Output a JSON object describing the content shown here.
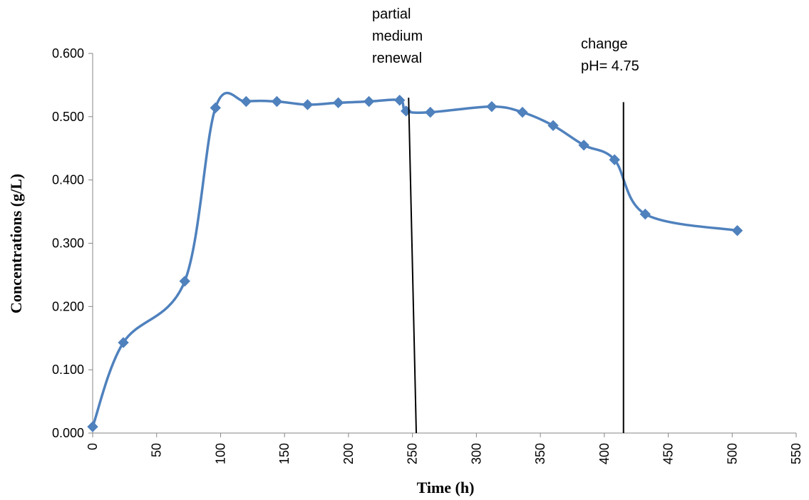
{
  "chart_data": {
    "type": "line",
    "xlabel": "Time (h)",
    "ylabel": "Concentrations (g/L)",
    "xlim": [
      0,
      550
    ],
    "ylim": [
      0,
      0.6
    ],
    "x_ticks": [
      "0",
      "50",
      "100",
      "150",
      "200",
      "250",
      "300",
      "350",
      "400",
      "450",
      "500",
      "550"
    ],
    "y_ticks": [
      "0.000",
      "0.100",
      "0.200",
      "0.300",
      "0.400",
      "0.500",
      "0.600"
    ],
    "grid": false,
    "legend": "none",
    "series": [
      {
        "color": "#4f81bd",
        "marker": "diamond",
        "smooth": true,
        "points": [
          {
            "x": 0,
            "y": 0.01
          },
          {
            "x": 24,
            "y": 0.143
          },
          {
            "x": 72,
            "y": 0.24
          },
          {
            "x": 96,
            "y": 0.514
          },
          {
            "x": 120,
            "y": 0.524
          },
          {
            "x": 144,
            "y": 0.524
          },
          {
            "x": 168,
            "y": 0.519
          },
          {
            "x": 192,
            "y": 0.522
          },
          {
            "x": 216,
            "y": 0.524
          },
          {
            "x": 240,
            "y": 0.526
          },
          {
            "x": 245,
            "y": 0.509
          },
          {
            "x": 264,
            "y": 0.507
          },
          {
            "x": 312,
            "y": 0.516
          },
          {
            "x": 336,
            "y": 0.507
          },
          {
            "x": 360,
            "y": 0.486
          },
          {
            "x": 384,
            "y": 0.455
          },
          {
            "x": 408,
            "y": 0.432
          },
          {
            "x": 432,
            "y": 0.346
          },
          {
            "x": 504,
            "y": 0.32
          }
        ]
      }
    ],
    "annotations": [
      {
        "lines": [
          "partial",
          "medium",
          "renewal"
        ],
        "x_top": 247,
        "y_top": 0.53,
        "x_bottom": 253,
        "y_bottom": 0.0
      },
      {
        "lines": [
          "change",
          "pH= 4.75"
        ],
        "x_top": 415,
        "y_top": 0.523,
        "x_bottom": 415,
        "y_bottom": 0.0
      }
    ]
  }
}
